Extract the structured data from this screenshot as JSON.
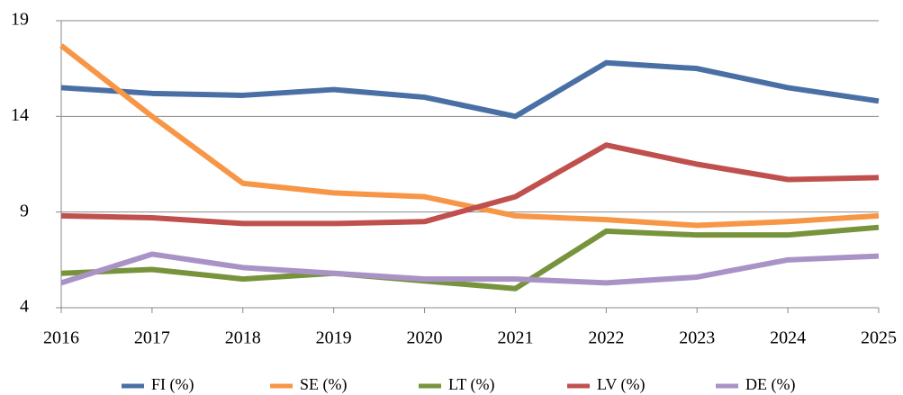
{
  "chart_data": {
    "type": "line",
    "categories": [
      "2016",
      "2017",
      "2018",
      "2019",
      "2020",
      "2021",
      "2022",
      "2023",
      "2024",
      "2025"
    ],
    "series": [
      {
        "name": "FI (%)",
        "color": "#4a6fa5",
        "values": [
          15.5,
          15.2,
          15.1,
          15.4,
          15.0,
          14.0,
          16.8,
          16.5,
          15.5,
          14.8
        ]
      },
      {
        "name": "SE (%)",
        "color": "#f79646",
        "values": [
          17.7,
          14.0,
          10.5,
          10.0,
          9.8,
          8.8,
          8.6,
          8.3,
          8.5,
          8.8
        ]
      },
      {
        "name": "LT (%)",
        "color": "#77933c",
        "values": [
          5.8,
          6.0,
          5.5,
          5.8,
          5.4,
          5.0,
          8.0,
          7.8,
          7.8,
          8.2
        ]
      },
      {
        "name": "LV (%)",
        "color": "#c0504d",
        "values": [
          8.8,
          8.7,
          8.4,
          8.4,
          8.5,
          9.8,
          12.5,
          11.5,
          10.7,
          10.8
        ]
      },
      {
        "name": "DE (%)",
        "color": "#a993c6",
        "values": [
          5.3,
          6.8,
          6.1,
          5.8,
          5.5,
          5.5,
          5.3,
          5.6,
          6.5,
          6.7
        ]
      }
    ],
    "ylim": [
      4,
      19
    ],
    "yticks": [
      4,
      9,
      14,
      19
    ],
    "grid": true,
    "legend": "bottom"
  }
}
